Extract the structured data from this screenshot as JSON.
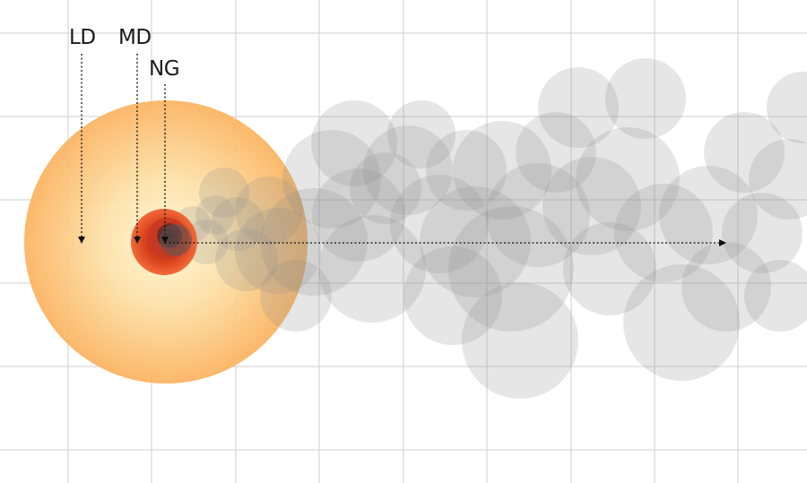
{
  "labels": {
    "ld": "LD",
    "md": "MD",
    "ng": "NG"
  },
  "colors": {
    "background": "#ffffff",
    "grid": "#cfcfcf",
    "smoke": "#8c8c8c",
    "ld_center": "#fff6d6",
    "ld_edge": "#fbb25e",
    "md_core": "#d9421c",
    "md_edge": "#f26a3a",
    "ng_core": "#5a2a24",
    "arrow": "#111111"
  },
  "icons": {
    "ld": "light-damage-zone",
    "md": "moderate-damage-zone",
    "ng": "nuclear-ground-zero",
    "smoke": "smoke-plume-cloud",
    "wind": "wind-direction-arrow"
  }
}
